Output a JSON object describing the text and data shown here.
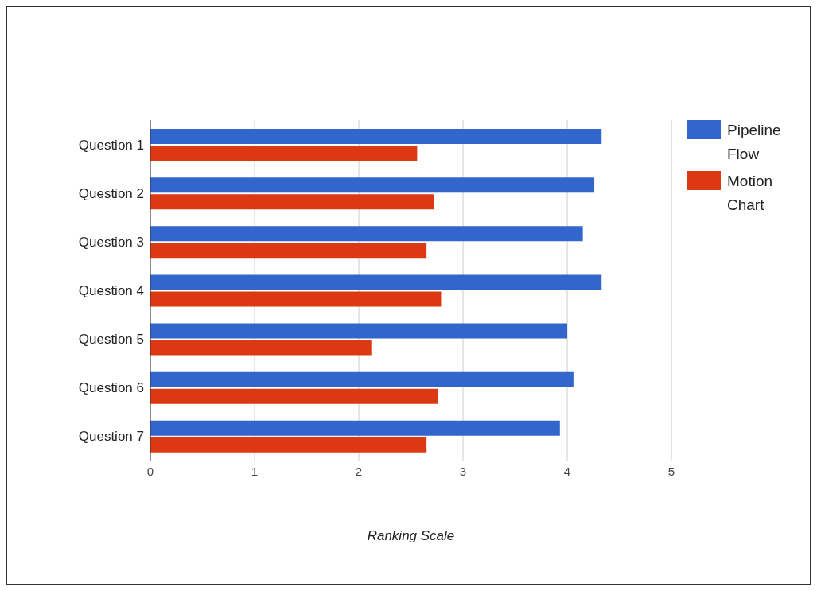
{
  "chart_data": {
    "type": "bar",
    "orientation": "horizontal",
    "xlabel": "Ranking Scale",
    "categories": [
      "Question 1",
      "Question 2",
      "Question 3",
      "Question 4",
      "Question 5",
      "Question 6",
      "Question 7"
    ],
    "series": [
      {
        "name": "Pipeline Flow",
        "color": "#3366cc",
        "values": [
          4.33,
          4.26,
          4.15,
          4.33,
          4.0,
          4.06,
          3.93
        ]
      },
      {
        "name": "Motion Chart",
        "color": "#dc3912",
        "values": [
          2.56,
          2.72,
          2.65,
          2.79,
          2.12,
          2.76,
          2.65
        ]
      }
    ],
    "xlim": [
      0,
      5
    ],
    "xticks": [
      0,
      1,
      2,
      3,
      4,
      5
    ],
    "grid": "x",
    "legend": "top right"
  }
}
